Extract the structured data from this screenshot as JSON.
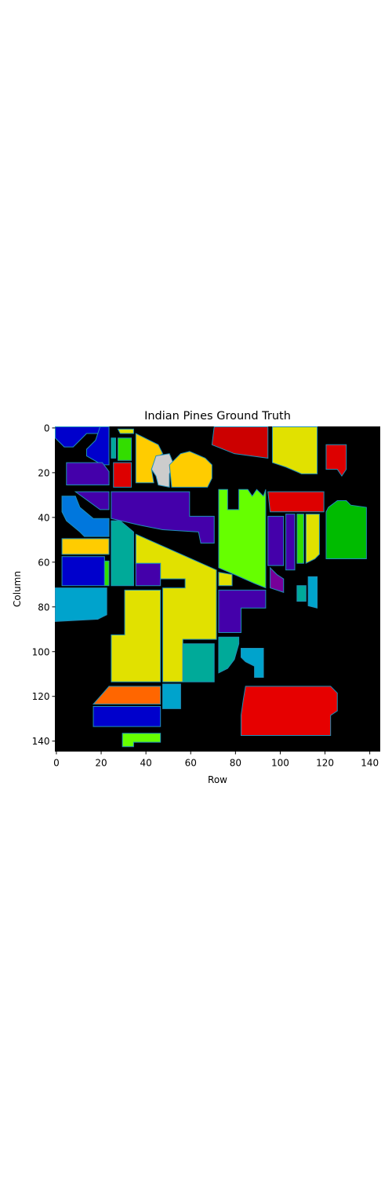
{
  "chart_data": {
    "type": "heatmap",
    "title": "Indian Pines Ground Truth",
    "xlabel": "Row",
    "ylabel": "Column",
    "xlim": [
      0,
      145
    ],
    "ylim": [
      145,
      0
    ],
    "xticks": [
      0,
      20,
      40,
      60,
      80,
      100,
      120,
      140
    ],
    "yticks": [
      0,
      20,
      40,
      60,
      80,
      100,
      120,
      140
    ],
    "grid": false,
    "legend": "none",
    "colormap": "nipy_spectral",
    "background_color": "#000000",
    "regions": [
      {
        "color": "#0000cc",
        "points": [
          [
            0,
            0
          ],
          [
            20,
            0
          ],
          [
            22,
            3
          ],
          [
            14,
            3
          ],
          [
            8,
            9
          ],
          [
            4,
            9
          ],
          [
            0,
            5
          ]
        ]
      },
      {
        "color": "#0000cc",
        "points": [
          [
            20,
            0
          ],
          [
            24,
            0
          ],
          [
            24,
            17
          ],
          [
            21,
            17
          ],
          [
            14,
            13
          ],
          [
            14,
            10
          ],
          [
            18,
            6
          ]
        ]
      },
      {
        "color": "#4400aa",
        "points": [
          [
            5,
            16
          ],
          [
            21,
            16
          ],
          [
            24,
            20
          ],
          [
            24,
            26
          ],
          [
            5,
            26
          ]
        ]
      },
      {
        "color": "#0077dd",
        "points": [
          [
            3,
            31
          ],
          [
            9,
            31
          ],
          [
            11,
            36
          ],
          [
            17,
            41
          ],
          [
            24,
            41
          ],
          [
            24,
            49
          ],
          [
            13,
            49
          ],
          [
            11,
            47
          ],
          [
            5,
            42
          ],
          [
            3,
            38
          ]
        ]
      },
      {
        "color": "#ffcc00",
        "points": [
          [
            3,
            50
          ],
          [
            24,
            50
          ],
          [
            24,
            57
          ],
          [
            3,
            57
          ]
        ]
      },
      {
        "color": "#0000cc",
        "points": [
          [
            3,
            58
          ],
          [
            22,
            58
          ],
          [
            22,
            71
          ],
          [
            3,
            71
          ]
        ]
      },
      {
        "color": "#33dd00",
        "points": [
          [
            22,
            60
          ],
          [
            24,
            60
          ],
          [
            24,
            71
          ],
          [
            22,
            71
          ]
        ]
      },
      {
        "color": "#00a3cc",
        "points": [
          [
            0,
            72
          ],
          [
            23,
            72
          ],
          [
            23,
            84
          ],
          [
            19,
            86
          ],
          [
            0,
            87
          ]
        ]
      },
      {
        "color": "#4400aa",
        "points": [
          [
            9,
            29
          ],
          [
            24,
            29
          ],
          [
            24,
            37
          ],
          [
            20,
            37
          ]
        ]
      },
      {
        "color": "#00aa99",
        "points": [
          [
            25,
            5
          ],
          [
            27,
            5
          ],
          [
            27,
            14
          ],
          [
            25,
            14
          ]
        ]
      },
      {
        "color": "#33dd00",
        "points": [
          [
            28,
            5
          ],
          [
            34,
            5
          ],
          [
            34,
            15
          ],
          [
            28,
            15
          ]
        ]
      },
      {
        "color": "#e1e100",
        "points": [
          [
            28,
            1
          ],
          [
            35,
            1
          ],
          [
            35,
            3
          ],
          [
            29,
            3
          ]
        ]
      },
      {
        "color": "#dd0000",
        "points": [
          [
            26,
            16
          ],
          [
            34,
            16
          ],
          [
            34,
            27
          ],
          [
            26,
            27
          ]
        ]
      },
      {
        "color": "#ffcc00",
        "points": [
          [
            36,
            3
          ],
          [
            46,
            8
          ],
          [
            48,
            12
          ],
          [
            45,
            14
          ],
          [
            43,
            19
          ],
          [
            44,
            25
          ],
          [
            36,
            25
          ]
        ]
      },
      {
        "color": "#cccccc",
        "points": [
          [
            45,
            13
          ],
          [
            51,
            12
          ],
          [
            53,
            17
          ],
          [
            51,
            21
          ],
          [
            51,
            27
          ],
          [
            46,
            26
          ],
          [
            45,
            22
          ],
          [
            43,
            19
          ]
        ]
      },
      {
        "color": "#ffcc00",
        "points": [
          [
            51,
            17
          ],
          [
            56,
            12
          ],
          [
            60,
            11
          ],
          [
            67,
            14
          ],
          [
            70,
            17
          ],
          [
            70,
            23
          ],
          [
            68,
            27
          ],
          [
            52,
            27
          ]
        ]
      },
      {
        "color": "#4400aa",
        "points": [
          [
            25,
            29
          ],
          [
            60,
            29
          ],
          [
            60,
            40
          ],
          [
            71,
            40
          ],
          [
            71,
            52
          ],
          [
            65,
            52
          ],
          [
            64,
            47
          ],
          [
            48,
            46
          ],
          [
            38,
            44
          ],
          [
            25,
            41
          ]
        ]
      },
      {
        "color": "#00aa99",
        "points": [
          [
            25,
            42
          ],
          [
            29,
            42
          ],
          [
            35,
            47
          ],
          [
            35,
            71
          ],
          [
            25,
            71
          ]
        ]
      },
      {
        "color": "#4400aa",
        "points": [
          [
            36,
            61
          ],
          [
            47,
            61
          ],
          [
            47,
            71
          ],
          [
            36,
            71
          ]
        ]
      },
      {
        "color": "#e1e100",
        "points": [
          [
            36,
            48
          ],
          [
            72,
            64
          ],
          [
            72,
            95
          ],
          [
            57,
            95
          ],
          [
            57,
            114
          ],
          [
            48,
            114
          ],
          [
            48,
            72
          ],
          [
            58,
            72
          ],
          [
            58,
            68
          ],
          [
            47,
            68
          ],
          [
            47,
            61
          ],
          [
            36,
            61
          ]
        ]
      },
      {
        "color": "#e1e100",
        "points": [
          [
            31,
            73
          ],
          [
            47,
            73
          ],
          [
            47,
            114
          ],
          [
            25,
            114
          ],
          [
            25,
            93
          ],
          [
            31,
            93
          ]
        ]
      },
      {
        "color": "#00aa99",
        "points": [
          [
            57,
            97
          ],
          [
            71,
            97
          ],
          [
            71,
            114
          ],
          [
            57,
            114
          ]
        ]
      },
      {
        "color": "#00a3cc",
        "points": [
          [
            48,
            115
          ],
          [
            56,
            115
          ],
          [
            56,
            126
          ],
          [
            48,
            126
          ]
        ]
      },
      {
        "color": "#ff6600",
        "points": [
          [
            24,
            116
          ],
          [
            47,
            116
          ],
          [
            47,
            124
          ],
          [
            17,
            124
          ]
        ]
      },
      {
        "color": "#0000cc",
        "points": [
          [
            17,
            125
          ],
          [
            47,
            125
          ],
          [
            47,
            134
          ],
          [
            17,
            134
          ]
        ]
      },
      {
        "color": "#66ff00",
        "points": [
          [
            30,
            137
          ],
          [
            47,
            137
          ],
          [
            47,
            141
          ],
          [
            35,
            141
          ],
          [
            35,
            143
          ],
          [
            30,
            143
          ]
        ]
      },
      {
        "color": "#cc0000",
        "points": [
          [
            71,
            0
          ],
          [
            95,
            0
          ],
          [
            95,
            14
          ],
          [
            80,
            12
          ],
          [
            70,
            8
          ]
        ]
      },
      {
        "color": "#e1e100",
        "points": [
          [
            97,
            0
          ],
          [
            117,
            0
          ],
          [
            117,
            21
          ],
          [
            110,
            21
          ],
          [
            103,
            18
          ],
          [
            97,
            16
          ]
        ]
      },
      {
        "color": "#dd0000",
        "points": [
          [
            121,
            8
          ],
          [
            130,
            8
          ],
          [
            130,
            19
          ],
          [
            128,
            22
          ],
          [
            126,
            19
          ],
          [
            121,
            19
          ]
        ]
      },
      {
        "color": "#66ff00",
        "points": [
          [
            73,
            28
          ],
          [
            77,
            28
          ],
          [
            77,
            37
          ],
          [
            82,
            37
          ],
          [
            82,
            28
          ],
          [
            86,
            28
          ],
          [
            88,
            31
          ],
          [
            90,
            28
          ],
          [
            93,
            31
          ],
          [
            94,
            28
          ],
          [
            94,
            72
          ],
          [
            89,
            70
          ],
          [
            80,
            66
          ],
          [
            73,
            63
          ]
        ]
      },
      {
        "color": "#dd0000",
        "points": [
          [
            95,
            29
          ],
          [
            120,
            29
          ],
          [
            120,
            38
          ],
          [
            96,
            38
          ]
        ]
      },
      {
        "color": "#4400aa",
        "points": [
          [
            95,
            40
          ],
          [
            102,
            40
          ],
          [
            102,
            62
          ],
          [
            95,
            62
          ]
        ]
      },
      {
        "color": "#4400aa",
        "points": [
          [
            103,
            39
          ],
          [
            107,
            39
          ],
          [
            107,
            64
          ],
          [
            103,
            64
          ]
        ]
      },
      {
        "color": "#33dd00",
        "points": [
          [
            108,
            39
          ],
          [
            111,
            39
          ],
          [
            111,
            61
          ],
          [
            108,
            61
          ]
        ]
      },
      {
        "color": "#e1e100",
        "points": [
          [
            112,
            39
          ],
          [
            118,
            39
          ],
          [
            118,
            57
          ],
          [
            116,
            59
          ],
          [
            112,
            61
          ]
        ]
      },
      {
        "color": "#00bb00",
        "points": [
          [
            122,
            36
          ],
          [
            126,
            33
          ],
          [
            130,
            33
          ],
          [
            132,
            35
          ],
          [
            139,
            36
          ],
          [
            139,
            59
          ],
          [
            121,
            59
          ],
          [
            121,
            38
          ]
        ]
      },
      {
        "color": "#770099",
        "points": [
          [
            96,
            63
          ],
          [
            99,
            66
          ],
          [
            102,
            68
          ],
          [
            102,
            74
          ],
          [
            96,
            72
          ]
        ]
      },
      {
        "color": "#00aa99",
        "points": [
          [
            108,
            71
          ],
          [
            112,
            71
          ],
          [
            112,
            78
          ],
          [
            108,
            78
          ]
        ]
      },
      {
        "color": "#00a3cc",
        "points": [
          [
            113,
            67
          ],
          [
            117,
            67
          ],
          [
            117,
            81
          ],
          [
            113,
            80
          ]
        ]
      },
      {
        "color": "#e1e100",
        "points": [
          [
            73,
            65
          ],
          [
            79,
            66
          ],
          [
            79,
            71
          ],
          [
            73,
            71
          ]
        ]
      },
      {
        "color": "#4400aa",
        "points": [
          [
            73,
            73
          ],
          [
            94,
            73
          ],
          [
            94,
            81
          ],
          [
            83,
            81
          ],
          [
            83,
            92
          ],
          [
            73,
            92
          ]
        ]
      },
      {
        "color": "#00aa99",
        "points": [
          [
            73,
            94
          ],
          [
            82,
            94
          ],
          [
            82,
            97
          ],
          [
            80,
            104
          ],
          [
            77,
            108
          ],
          [
            73,
            110
          ]
        ]
      },
      {
        "color": "#00a3cc",
        "points": [
          [
            83,
            99
          ],
          [
            93,
            99
          ],
          [
            93,
            112
          ],
          [
            89,
            112
          ],
          [
            89,
            107
          ],
          [
            85,
            105
          ],
          [
            83,
            103
          ]
        ]
      },
      {
        "color": "#e60000",
        "points": [
          [
            85,
            116
          ],
          [
            123,
            116
          ],
          [
            126,
            119
          ],
          [
            126,
            127
          ],
          [
            123,
            129
          ],
          [
            123,
            138
          ],
          [
            83,
            138
          ],
          [
            83,
            129
          ],
          [
            84,
            122
          ]
        ]
      }
    ]
  }
}
